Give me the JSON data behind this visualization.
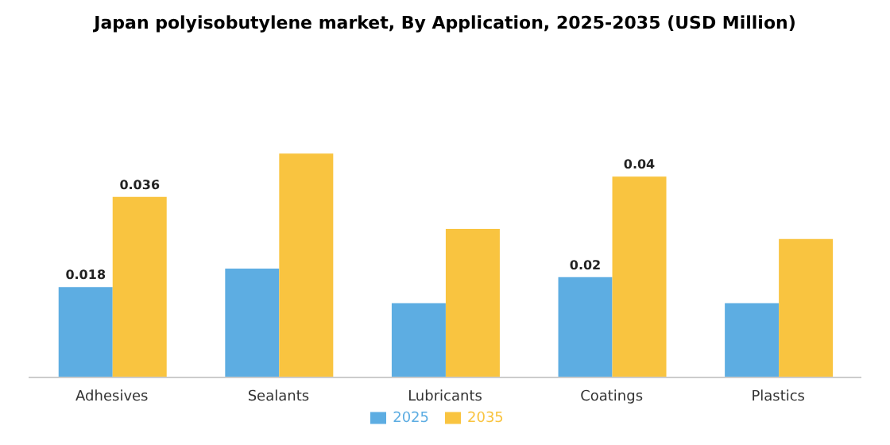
{
  "chart_data": {
    "type": "bar",
    "title": "Japan polyisobutylene market, By Application, 2025-2035 (USD Million)",
    "categories": [
      "Adhesives",
      "Sealants",
      "Lubricants",
      "Coatings",
      "Plastics"
    ],
    "series": [
      {
        "name": "2025",
        "color": "#5dade2",
        "values": [
          0.018,
          0.0217,
          0.0148,
          0.02,
          0.0148
        ],
        "value_labels": [
          "0.018",
          null,
          null,
          "0.02",
          null
        ]
      },
      {
        "name": "2035",
        "color": "#f9c440",
        "values": [
          0.036,
          0.0446,
          0.0296,
          0.04,
          0.0276
        ],
        "value_labels": [
          "0.036",
          null,
          null,
          "0.04",
          null
        ]
      }
    ],
    "legend": "bottom",
    "grid": false
  }
}
